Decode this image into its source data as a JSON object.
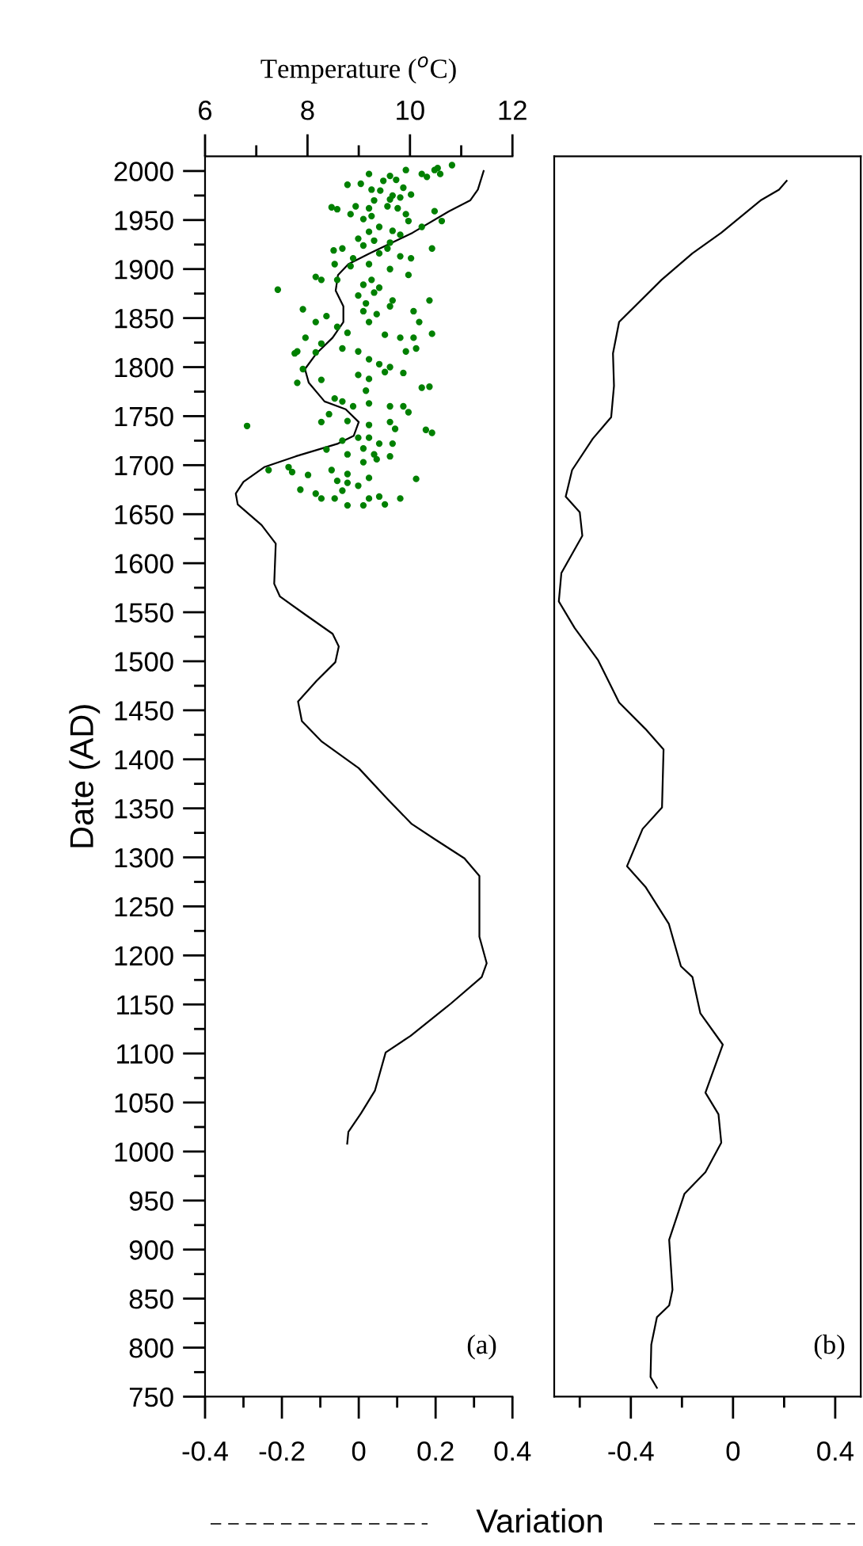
{
  "chart_data": [
    {
      "type": "line",
      "ylabel": "Date (AD)",
      "xlabel": "Variation",
      "x2label": "Temperature ($^{o}$C)",
      "xlim": [
        -0.4,
        0.4
      ],
      "xticks": [
        -0.4,
        {
          "value": -0.3,
          "label": null
        },
        -0.2,
        {
          "value": -0.1,
          "label": null
        },
        0,
        {
          "value": 0.1,
          "label": null
        },
        0.2,
        {
          "value": 0.3,
          "label": null
        },
        0.4
      ],
      "x2lim": [
        6,
        12
      ],
      "x2ticks": [
        6,
        {
          "value": 7,
          "label": null
        },
        8,
        {
          "value": 9,
          "label": null
        },
        10,
        {
          "value": 11,
          "label": null
        },
        12
      ],
      "ylim": [
        750,
        2015
      ],
      "yticks": [
        750,
        {
          "value": 775,
          "label": null
        },
        800,
        {
          "value": 825,
          "label": null
        },
        850,
        {
          "value": 875,
          "label": null
        },
        900,
        {
          "value": 925,
          "label": null
        },
        950,
        {
          "value": 975,
          "label": null
        },
        1000,
        {
          "value": 1025,
          "label": null
        },
        1050,
        {
          "value": 1075,
          "label": null
        },
        1100,
        {
          "value": 1125,
          "label": null
        },
        1150,
        {
          "value": 1175,
          "label": null
        },
        1200,
        {
          "value": 1225,
          "label": null
        },
        1250,
        {
          "value": 1275,
          "label": null
        },
        1300,
        {
          "value": 1325,
          "label": null
        },
        1350,
        {
          "value": 1375,
          "label": null
        },
        1400,
        {
          "value": 1425,
          "label": null
        },
        1450,
        {
          "value": 1475,
          "label": null
        },
        1500,
        {
          "value": 1525,
          "label": null
        },
        1550,
        {
          "value": 1575,
          "label": null
        },
        1600,
        {
          "value": 1625,
          "label": null
        },
        1650,
        {
          "value": 1675,
          "label": null
        },
        1700,
        {
          "value": 1725,
          "label": null
        },
        1750,
        {
          "value": 1775,
          "label": null
        },
        1800,
        {
          "value": 1825,
          "label": null
        },
        1850,
        {
          "value": 1875,
          "label": null
        },
        1900,
        {
          "value": 1925,
          "label": null
        },
        1950,
        {
          "value": 1975,
          "label": null
        },
        2000
      ],
      "annotations": [
        "(a)"
      ],
      "series": [
        {
          "color": "#000000",
          "line_style": "solid",
          "x": [
            0.325,
            0.31,
            0.29,
            0.235,
            0.14,
            0.028,
            -0.027,
            -0.054,
            -0.06,
            -0.04,
            -0.04,
            -0.068,
            -0.11,
            -0.14,
            -0.13,
            -0.089,
            -0.034,
            0.0,
            -0.013,
            -0.054,
            -0.164,
            -0.246,
            -0.3,
            -0.32,
            -0.315,
            -0.253,
            -0.216,
            -0.22,
            -0.205,
            -0.137,
            -0.068,
            -0.052,
            -0.061,
            -0.11,
            -0.158,
            -0.148,
            -0.096,
            0.0,
            0.076,
            0.138,
            0.2,
            0.275,
            0.314,
            0.314,
            0.333,
            0.32,
            0.24,
            0.135,
            0.07,
            0.042,
            0.006,
            -0.027,
            -0.03
          ],
          "values": [
            2000,
            1981,
            1970,
            1959,
            1937,
            1916,
            1905,
            1894,
            1878,
            1862,
            1846,
            1830,
            1814,
            1798,
            1784,
            1765,
            1757,
            1744,
            1730,
            1722,
            1709,
            1698,
            1683,
            1671,
            1660,
            1639,
            1620,
            1579,
            1566,
            1547,
            1528,
            1515,
            1499,
            1480,
            1459,
            1439,
            1418,
            1391,
            1359,
            1334,
            1318,
            1299,
            1281,
            1219,
            1192,
            1178,
            1151,
            1118,
            1101,
            1062,
            1039,
            1020,
            1008
          ]
        },
        {
          "type": "scatter",
          "axis": "x2",
          "color": "#008000",
          "marker": "circle",
          "x": [
            10.82,
            10.54,
            10.48,
            10.23,
            10.59,
            10.33,
            9.92,
            9.61,
            9.2,
            8.78,
            9.04,
            9.25,
            9.48,
            9.73,
            9.87,
            9.42,
            9.66,
            9.81,
            9.61,
            10.02,
            9.3,
            8.94,
            8.47,
            8.58,
            9.2,
            9.56,
            9.76,
            9.92,
            9.97,
            10.48,
            10.62,
            8.84,
            9.25,
            9.09,
            9.4,
            9.66,
            9.81,
            9.2,
            8.99,
            9.3,
            9.61,
            10.23,
            10.43,
            9.09,
            9.56,
            8.51,
            8.68,
            9.4,
            9.81,
            10.02,
            8.89,
            9.2,
            8.53,
            8.84,
            9.61,
            9.97,
            8.16,
            8.27,
            8.58,
            9.25,
            9.09,
            9.4,
            9.3,
            9.66,
            10.38,
            7.42,
            8.99,
            9.14,
            9.61,
            7.91,
            8.37,
            8.16,
            9.09,
            9.35,
            10.07,
            9.2,
            10.18,
            7.96,
            8.27,
            8.58,
            8.78,
            9.51,
            9.81,
            10.07,
            10.43,
            7.8,
            7.75,
            8.16,
            8.68,
            8.99,
            9.2,
            9.4,
            9.61,
            9.92,
            10.12,
            7.91,
            8.27,
            7.8,
            8.99,
            9.2,
            9.14,
            9.51,
            9.87,
            10.23,
            10.38,
            8.53,
            8.68,
            8.89,
            9.2,
            9.61,
            9.87,
            9.97,
            8.42,
            8.27,
            8.78,
            9.2,
            9.61,
            9.71,
            10.31,
            10.43,
            6.82,
            8.68,
            8.99,
            9.2,
            9.4,
            9.66,
            9.09,
            9.3,
            8.37,
            8.78,
            9.35,
            9.61,
            7.24,
            7.63,
            7.7,
            8.01,
            8.47,
            8.78,
            9.09,
            8.58,
            8.78,
            8.99,
            9.2,
            10.12,
            7.86,
            8.16,
            8.68,
            8.27,
            8.53,
            8.78,
            9.2,
            9.4,
            9.81,
            9.09,
            9.51
          ],
          "values": [
            2006,
            2003,
            2001,
            1997,
            1997,
            1994,
            2001,
            1995,
            1997,
            1986,
            1987,
            1981,
            1990,
            1991,
            1983,
            1980,
            1975,
            1973,
            1971,
            1976,
            1970,
            1964,
            1963,
            1961,
            1962,
            1964,
            1962,
            1956,
            1949,
            1959,
            1949,
            1956,
            1954,
            1951,
            1943,
            1939,
            1935,
            1938,
            1931,
            1929,
            1927,
            1943,
            1921,
            1924,
            1921,
            1919,
            1921,
            1916,
            1913,
            1911,
            1911,
            1905,
            1905,
            1903,
            1900,
            1894,
            1892,
            1889,
            1889,
            1889,
            1884,
            1881,
            1876,
            1868,
            1868,
            1879,
            1873,
            1865,
            1862,
            1859,
            1852,
            1846,
            1857,
            1854,
            1857,
            1846,
            1846,
            1830,
            1824,
            1841,
            1835,
            1833,
            1830,
            1830,
            1834,
            1816,
            1814,
            1815,
            1819,
            1816,
            1808,
            1803,
            1800,
            1816,
            1819,
            1798,
            1787,
            1784,
            1792,
            1788,
            1776,
            1795,
            1794,
            1779,
            1780,
            1768,
            1765,
            1760,
            1763,
            1760,
            1760,
            1754,
            1752,
            1744,
            1745,
            1741,
            1744,
            1737,
            1736,
            1733,
            1740,
            1725,
            1728,
            1728,
            1722,
            1722,
            1717,
            1711,
            1716,
            1711,
            1706,
            1709,
            1695,
            1698,
            1693,
            1690,
            1695,
            1691,
            1703,
            1684,
            1682,
            1679,
            1687,
            1686,
            1675,
            1671,
            1674,
            1666,
            1666,
            1659,
            1666,
            1668,
            1666,
            1659,
            1660
          ]
        }
      ]
    },
    {
      "type": "line",
      "tick_labels": "x",
      "xlim": [
        -0.7,
        0.5
      ],
      "xticks": [
        {
          "value": -0.6,
          "label": null
        },
        -0.4,
        {
          "value": -0.2,
          "label": null
        },
        0,
        {
          "value": 0.2,
          "label": null
        },
        0.4
      ],
      "ylim": [
        750,
        2015
      ],
      "annotations": [
        "(b)"
      ],
      "series": [
        {
          "color": "#000000",
          "line_style": "solid",
          "x": [
            0.21,
            0.18,
            0.108,
            -0.046,
            -0.159,
            -0.28,
            -0.446,
            -0.47,
            -0.466,
            -0.477,
            -0.549,
            -0.63,
            -0.655,
            -0.6,
            -0.59,
            -0.672,
            -0.682,
            -0.62,
            -0.528,
            -0.446,
            -0.343,
            -0.272,
            -0.278,
            -0.354,
            -0.415,
            -0.343,
            -0.251,
            -0.204,
            -0.159,
            -0.128,
            -0.04,
            -0.108,
            -0.057,
            -0.046,
            -0.108,
            -0.19,
            -0.25,
            -0.237,
            -0.25,
            -0.298,
            -0.32,
            -0.323,
            -0.298
          ],
          "values": [
            1990,
            1981,
            1970,
            1937,
            1916,
            1889,
            1846,
            1814,
            1781,
            1749,
            1727,
            1695,
            1668,
            1652,
            1628,
            1590,
            1561,
            1534,
            1501,
            1458,
            1431,
            1410,
            1351,
            1329,
            1291,
            1270,
            1232,
            1189,
            1178,
            1141,
            1109,
            1060,
            1038,
            1009,
            979,
            957,
            910,
            859,
            843,
            831,
            803,
            770,
            759
          ]
        }
      ]
    }
  ]
}
